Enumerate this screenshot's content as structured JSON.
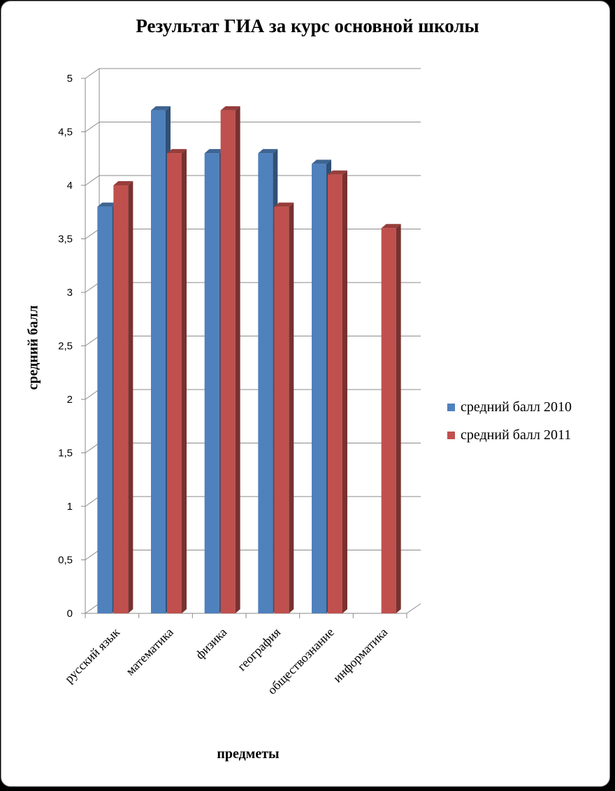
{
  "chart_data": {
    "type": "bar",
    "title": "Результат ГИА за курс основной школы",
    "xlabel": "предметы",
    "ylabel": "средний балл",
    "categories": [
      "русский язык",
      "математика",
      "физика",
      "география",
      "обществознание",
      "информатика"
    ],
    "series": [
      {
        "name": "средний балл 2010",
        "values": [
          3.8,
          4.7,
          4.3,
          4.3,
          4.2,
          null
        ],
        "color": "#4f81bd"
      },
      {
        "name": "средний балл 2011",
        "values": [
          4.0,
          4.3,
          4.7,
          3.8,
          4.1,
          3.6
        ],
        "color": "#c0504d"
      }
    ],
    "yticks": [
      "0",
      "0,5",
      "1",
      "1,5",
      "2",
      "2,5",
      "3",
      "3,5",
      "4",
      "4,5",
      "5"
    ],
    "ylim": [
      0,
      5
    ],
    "grid": true,
    "legend": "right"
  }
}
